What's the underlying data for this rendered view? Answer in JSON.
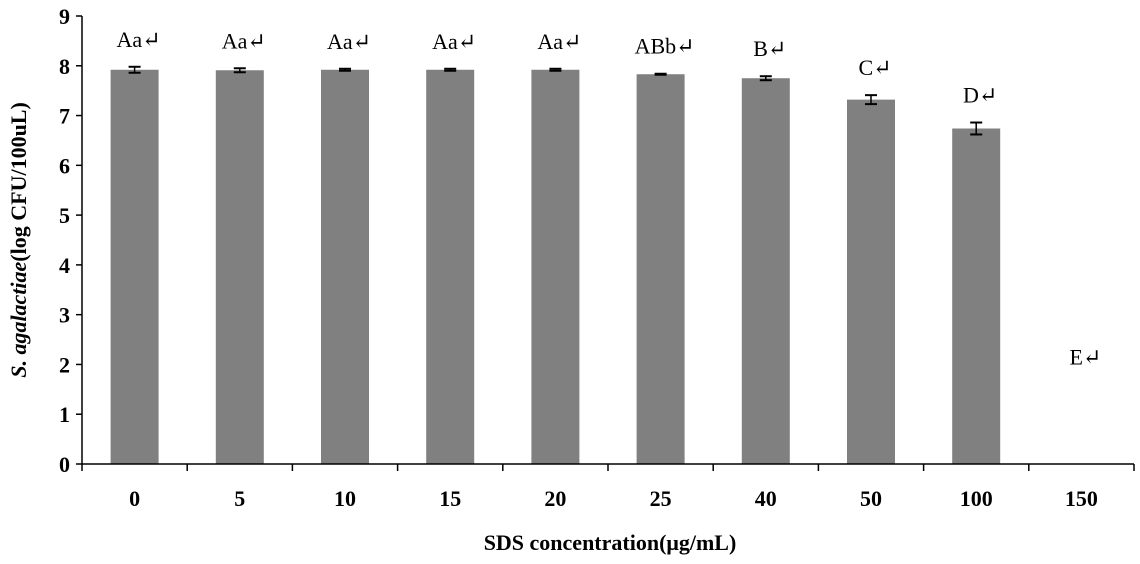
{
  "chart_data": {
    "type": "bar",
    "categories": [
      "0",
      "5",
      "10",
      "15",
      "20",
      "25",
      "40",
      "50",
      "100",
      "150"
    ],
    "values": [
      7.92,
      7.91,
      7.92,
      7.92,
      7.92,
      7.83,
      7.75,
      7.32,
      6.74,
      0
    ],
    "error": [
      0.06,
      0.04,
      0.02,
      0.02,
      0.02,
      0.01,
      0.04,
      0.09,
      0.12,
      0
    ],
    "bar_labels": [
      "Aa↵",
      "Aa↵",
      "Aa↵",
      "Aa↵",
      "Aa↵",
      "ABb↵",
      "B↵",
      "C↵",
      "D↵",
      "E↵"
    ],
    "xlabel": "SDS concentration(μg/mL)",
    "ylabel_italic": "S. agalactiae",
    "ylabel_rest": "(log CFU/100uL)",
    "ylim": [
      0,
      9
    ],
    "yticks": [
      "0",
      "1",
      "2",
      "3",
      "4",
      "5",
      "6",
      "7",
      "8",
      "9"
    ],
    "grid": false,
    "bar_color": "#808080"
  }
}
